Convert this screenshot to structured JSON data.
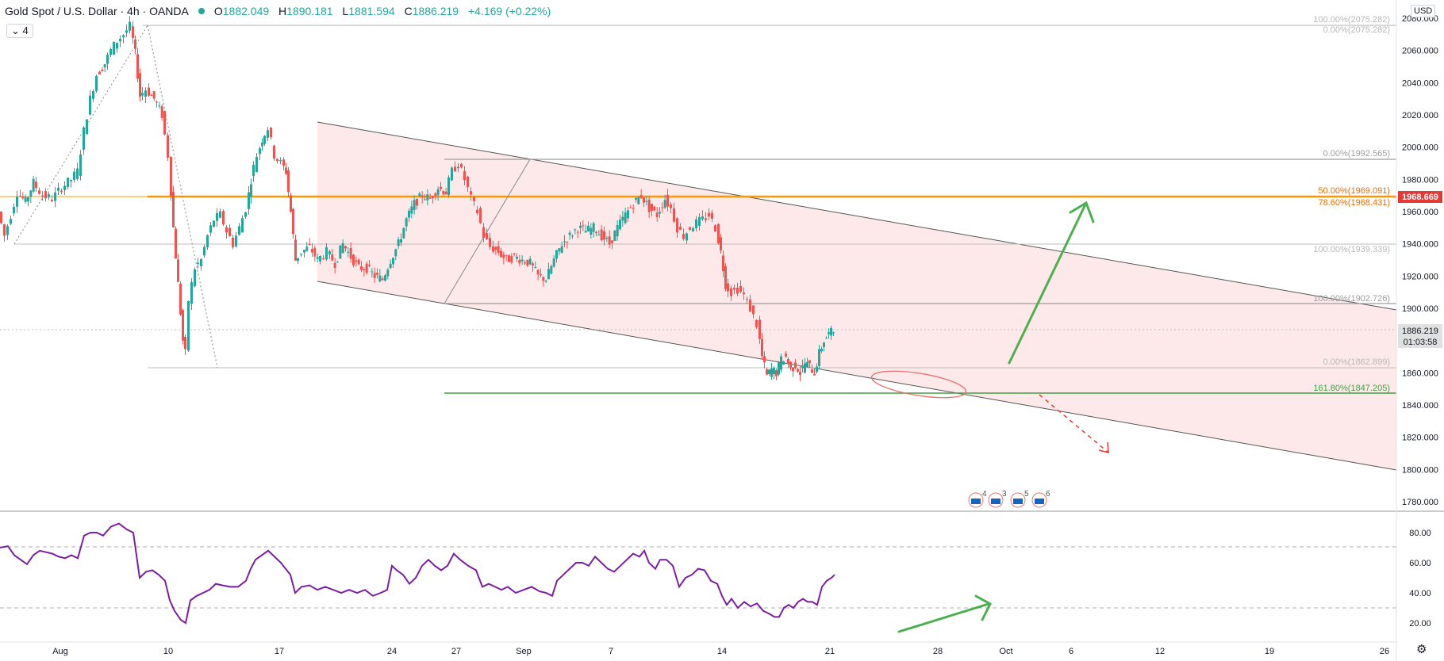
{
  "header": {
    "symbol": "Gold Spot / U.S. Dollar · 4h · OANDA",
    "open_label": "O",
    "open": "1882.049",
    "high_label": "H",
    "high": "1890.181",
    "low_label": "L",
    "low": "1881.594",
    "close_label": "C",
    "close": "1886.219",
    "change": "+4.169 (+0.22%)",
    "interval_indicator": "4"
  },
  "currency_label": "USD",
  "colors": {
    "up": "#26a69a",
    "down": "#ef5350",
    "channel_fill": "#fde9e9",
    "orange": "#ff9800",
    "green": "#4caf50",
    "rsi": "#7b1fa2",
    "price_tag": "#e53935",
    "level_line": "#9e9e9e"
  },
  "icons": [
    "settings-gear-icon",
    "event-flag-icon"
  ],
  "chart_data": [
    {
      "type": "candlestick",
      "x_tick_labels": [
        "Aug",
        "10",
        "17",
        "24",
        "27",
        "Sep",
        "7",
        "14",
        "21",
        "28",
        "Oct",
        "6",
        "12",
        "19",
        "26"
      ],
      "y_tick_labels": [
        "2080.000",
        "2060.000",
        "2040.000",
        "2020.000",
        "2000.000",
        "1980.000",
        "1960.000",
        "1940.000",
        "1920.000",
        "1900.000",
        "1880.000",
        "1860.000",
        "1840.000",
        "1820.000",
        "1800.000",
        "1780.000"
      ],
      "ylim": [
        1776,
        2082
      ],
      "price_path": [
        [
          0,
          1960
        ],
        [
          8,
          1945
        ],
        [
          16,
          1958
        ],
        [
          24,
          1972
        ],
        [
          34,
          1966
        ],
        [
          44,
          1978
        ],
        [
          56,
          1970
        ],
        [
          68,
          1968
        ],
        [
          80,
          1975
        ],
        [
          92,
          1980
        ],
        [
          100,
          1985
        ],
        [
          108,
          2010
        ],
        [
          116,
          2030
        ],
        [
          124,
          2045
        ],
        [
          134,
          2052
        ],
        [
          142,
          2060
        ],
        [
          150,
          2066
        ],
        [
          158,
          2070
        ],
        [
          166,
          2075
        ],
        [
          172,
          2058
        ],
        [
          178,
          2032
        ],
        [
          186,
          2036
        ],
        [
          196,
          2030
        ],
        [
          206,
          2020
        ],
        [
          214,
          1995
        ],
        [
          220,
          1950
        ],
        [
          226,
          1915
        ],
        [
          232,
          1880
        ],
        [
          236,
          1872
        ],
        [
          240,
          1905
        ],
        [
          248,
          1925
        ],
        [
          256,
          1930
        ],
        [
          264,
          1945
        ],
        [
          272,
          1955
        ],
        [
          280,
          1958
        ],
        [
          288,
          1948
        ],
        [
          296,
          1940
        ],
        [
          304,
          1950
        ],
        [
          312,
          1962
        ],
        [
          318,
          1980
        ],
        [
          326,
          1995
        ],
        [
          332,
          2005
        ],
        [
          340,
          2012
        ],
        [
          348,
          1995
        ],
        [
          356,
          1990
        ],
        [
          362,
          1985
        ],
        [
          368,
          1960
        ],
        [
          374,
          1930
        ],
        [
          382,
          1935
        ],
        [
          392,
          1938
        ],
        [
          402,
          1930
        ],
        [
          414,
          1935
        ],
        [
          424,
          1928
        ],
        [
          434,
          1940
        ],
        [
          444,
          1932
        ],
        [
          454,
          1925
        ],
        [
          464,
          1925
        ],
        [
          474,
          1920
        ],
        [
          484,
          1918
        ],
        [
          494,
          1930
        ],
        [
          504,
          1940
        ],
        [
          514,
          1955
        ],
        [
          524,
          1965
        ],
        [
          534,
          1970
        ],
        [
          544,
          1968
        ],
        [
          554,
          1975
        ],
        [
          564,
          1972
        ],
        [
          572,
          1985
        ],
        [
          580,
          1990
        ],
        [
          588,
          1980
        ],
        [
          596,
          1968
        ],
        [
          604,
          1960
        ],
        [
          612,
          1945
        ],
        [
          620,
          1938
        ],
        [
          630,
          1935
        ],
        [
          640,
          1930
        ],
        [
          650,
          1932
        ],
        [
          660,
          1930
        ],
        [
          670,
          1928
        ],
        [
          680,
          1920
        ],
        [
          690,
          1918
        ],
        [
          700,
          1930
        ],
        [
          710,
          1940
        ],
        [
          720,
          1945
        ],
        [
          730,
          1950
        ],
        [
          740,
          1948
        ],
        [
          750,
          1950
        ],
        [
          760,
          1945
        ],
        [
          770,
          1940
        ],
        [
          780,
          1950
        ],
        [
          790,
          1958
        ],
        [
          800,
          1965
        ],
        [
          810,
          1970
        ],
        [
          820,
          1962
        ],
        [
          830,
          1958
        ],
        [
          840,
          1968
        ],
        [
          848,
          1962
        ],
        [
          856,
          1950
        ],
        [
          864,
          1945
        ],
        [
          872,
          1950
        ],
        [
          880,
          1953
        ],
        [
          888,
          1955
        ],
        [
          896,
          1958
        ],
        [
          904,
          1950
        ],
        [
          910,
          1935
        ],
        [
          916,
          1915
        ],
        [
          924,
          1910
        ],
        [
          932,
          1912
        ],
        [
          940,
          1908
        ],
        [
          948,
          1900
        ],
        [
          956,
          1890
        ],
        [
          962,
          1870
        ],
        [
          968,
          1858
        ],
        [
          974,
          1862
        ],
        [
          980,
          1860
        ],
        [
          986,
          1868
        ],
        [
          992,
          1870
        ],
        [
          998,
          1862
        ],
        [
          1004,
          1865
        ],
        [
          1010,
          1860
        ],
        [
          1016,
          1866
        ],
        [
          1022,
          1864
        ],
        [
          1028,
          1860
        ],
        [
          1034,
          1872
        ],
        [
          1040,
          1880
        ],
        [
          1046,
          1884
        ],
        [
          1052,
          1886
        ]
      ],
      "rsi": {
        "yticks": [
          "80.00",
          "60.00",
          "40.00",
          "20.00"
        ],
        "ylim": [
          14,
          90
        ],
        "bands": [
          70,
          30
        ],
        "values": [
          [
            0,
            70
          ],
          [
            10,
            71
          ],
          [
            18,
            65
          ],
          [
            26,
            62
          ],
          [
            34,
            59
          ],
          [
            42,
            65
          ],
          [
            50,
            68
          ],
          [
            58,
            67
          ],
          [
            66,
            66
          ],
          [
            74,
            64
          ],
          [
            82,
            63
          ],
          [
            90,
            65
          ],
          [
            98,
            63
          ],
          [
            106,
            78
          ],
          [
            114,
            80
          ],
          [
            122,
            80
          ],
          [
            130,
            78
          ],
          [
            140,
            84
          ],
          [
            150,
            86
          ],
          [
            160,
            82
          ],
          [
            168,
            80
          ],
          [
            176,
            50
          ],
          [
            184,
            54
          ],
          [
            192,
            55
          ],
          [
            200,
            52
          ],
          [
            208,
            48
          ],
          [
            214,
            35
          ],
          [
            220,
            28
          ],
          [
            228,
            22
          ],
          [
            234,
            20
          ],
          [
            240,
            35
          ],
          [
            248,
            38
          ],
          [
            256,
            40
          ],
          [
            264,
            42
          ],
          [
            272,
            46
          ],
          [
            280,
            45
          ],
          [
            290,
            44
          ],
          [
            300,
            44
          ],
          [
            310,
            48
          ],
          [
            316,
            56
          ],
          [
            322,
            62
          ],
          [
            330,
            65
          ],
          [
            338,
            68
          ],
          [
            346,
            64
          ],
          [
            354,
            60
          ],
          [
            360,
            56
          ],
          [
            366,
            52
          ],
          [
            372,
            40
          ],
          [
            380,
            44
          ],
          [
            390,
            45
          ],
          [
            400,
            42
          ],
          [
            410,
            44
          ],
          [
            420,
            42
          ],
          [
            430,
            40
          ],
          [
            440,
            42
          ],
          [
            450,
            40
          ],
          [
            460,
            42
          ],
          [
            470,
            38
          ],
          [
            480,
            40
          ],
          [
            488,
            42
          ],
          [
            494,
            58
          ],
          [
            500,
            55
          ],
          [
            508,
            52
          ],
          [
            516,
            46
          ],
          [
            524,
            50
          ],
          [
            532,
            58
          ],
          [
            540,
            62
          ],
          [
            548,
            58
          ],
          [
            556,
            55
          ],
          [
            564,
            58
          ],
          [
            572,
            66
          ],
          [
            580,
            62
          ],
          [
            590,
            58
          ],
          [
            600,
            55
          ],
          [
            608,
            44
          ],
          [
            616,
            46
          ],
          [
            624,
            44
          ],
          [
            632,
            42
          ],
          [
            640,
            44
          ],
          [
            650,
            40
          ],
          [
            660,
            42
          ],
          [
            670,
            44
          ],
          [
            680,
            41
          ],
          [
            688,
            40
          ],
          [
            696,
            38
          ],
          [
            702,
            48
          ],
          [
            710,
            52
          ],
          [
            718,
            56
          ],
          [
            726,
            60
          ],
          [
            734,
            60
          ],
          [
            742,
            58
          ],
          [
            750,
            64
          ],
          [
            758,
            60
          ],
          [
            766,
            56
          ],
          [
            774,
            54
          ],
          [
            782,
            58
          ],
          [
            790,
            62
          ],
          [
            798,
            66
          ],
          [
            806,
            64
          ],
          [
            812,
            68
          ],
          [
            818,
            60
          ],
          [
            826,
            56
          ],
          [
            832,
            62
          ],
          [
            840,
            62
          ],
          [
            848,
            58
          ],
          [
            856,
            44
          ],
          [
            864,
            50
          ],
          [
            872,
            52
          ],
          [
            880,
            56
          ],
          [
            888,
            55
          ],
          [
            896,
            48
          ],
          [
            904,
            46
          ],
          [
            910,
            38
          ],
          [
            916,
            32
          ],
          [
            922,
            36
          ],
          [
            930,
            30
          ],
          [
            938,
            34
          ],
          [
            946,
            31
          ],
          [
            954,
            33
          ],
          [
            962,
            28
          ],
          [
            970,
            26
          ],
          [
            976,
            24
          ],
          [
            982,
            24
          ],
          [
            988,
            30
          ],
          [
            994,
            32
          ],
          [
            1000,
            30
          ],
          [
            1006,
            34
          ],
          [
            1012,
            36
          ],
          [
            1018,
            34
          ],
          [
            1024,
            34
          ],
          [
            1030,
            32
          ],
          [
            1036,
            44
          ],
          [
            1042,
            48
          ],
          [
            1048,
            50
          ],
          [
            1052,
            52
          ]
        ]
      },
      "annotations": {
        "fib_labels": [
          "100.00%(2075.282)",
          "0.00%(2075.282)",
          "0.00%(1992.565)",
          "50.00%(1969.091)",
          "78.60%(1968.431)",
          "100.00%(1939.339)",
          "100.00%(1902.726)",
          "0.00%(1862.899)",
          "161.80%(1847.205)"
        ],
        "price_tags": {
          "orange_level": "1968.669",
          "last_price": "1886.219",
          "countdown": "01:03:58"
        },
        "events": [
          "4",
          "3",
          "5",
          "6"
        ]
      }
    }
  ]
}
